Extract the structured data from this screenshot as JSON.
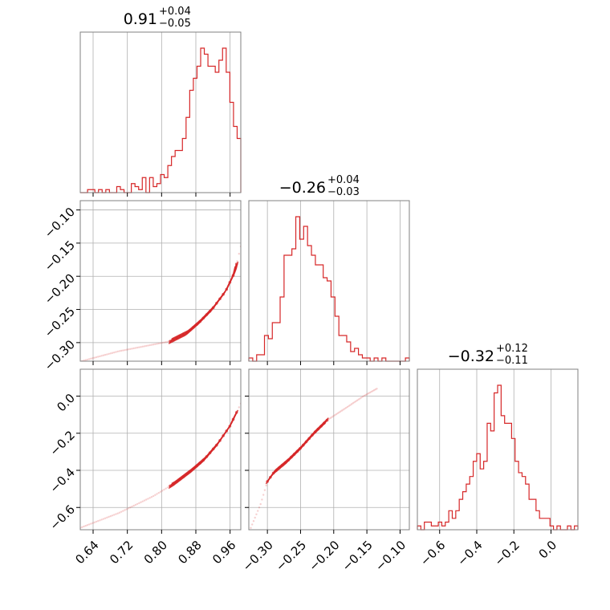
{
  "chart_data": {
    "type": "corner",
    "color": "#d62728",
    "grid": true,
    "titles": [
      {
        "value": "0.91",
        "plus": "+0.04",
        "minus": "−0.05"
      },
      {
        "value": "−0.26",
        "plus": "+0.04",
        "minus": "−0.03"
      },
      {
        "value": "−0.32",
        "plus": "+0.12",
        "minus": "−0.11"
      }
    ],
    "params": [
      {
        "range": [
          0.61,
          0.985
        ],
        "ticks": [
          0.64,
          0.72,
          0.8,
          0.88,
          0.96
        ],
        "tick_labels": [
          "0.64",
          "0.72",
          "0.80",
          "0.88",
          "0.96"
        ]
      },
      {
        "range": [
          -0.328,
          -0.086
        ],
        "ticks": [
          -0.3,
          -0.25,
          -0.2,
          -0.15,
          -0.1
        ],
        "tick_labels": [
          "−0.30",
          "−0.25",
          "−0.20",
          "−0.15",
          "−0.10"
        ]
      },
      {
        "range": [
          -0.72,
          0.145
        ],
        "ticks": [
          -0.6,
          -0.4,
          -0.2,
          0.0
        ],
        "tick_labels": [
          "−0.6",
          "−0.4",
          "−0.2",
          "0.0"
        ]
      }
    ],
    "y_tick_labels": {
      "1": [
        "−0.30",
        "−0.25",
        "−0.20",
        "−0.15",
        "−0.10"
      ],
      "2": [
        "−0.6",
        "−0.4",
        "−0.2",
        "0.0"
      ]
    },
    "hist": [
      [
        0,
        0,
        1,
        1,
        0,
        1,
        0,
        1,
        0,
        0,
        2,
        1,
        0,
        0,
        3,
        2,
        1,
        5,
        0,
        5,
        2,
        3,
        6,
        5,
        9,
        12,
        14,
        14,
        18,
        25,
        34,
        38,
        42,
        48,
        46,
        42,
        42,
        40,
        44,
        48,
        40,
        30,
        22,
        18
      ],
      [
        1,
        0,
        2,
        2,
        8,
        7,
        12,
        12,
        20,
        33,
        33,
        35,
        45,
        38,
        42,
        36,
        33,
        30,
        30,
        26,
        25,
        20,
        14,
        8,
        8,
        6,
        3,
        4,
        2,
        1,
        1,
        0,
        1,
        0,
        1,
        0,
        0,
        0,
        0,
        0,
        1
      ],
      [
        1,
        0,
        2,
        2,
        1,
        1,
        2,
        1,
        2,
        5,
        3,
        5,
        8,
        10,
        12,
        14,
        18,
        20,
        16,
        18,
        28,
        26,
        36,
        38,
        30,
        28,
        28,
        24,
        18,
        15,
        14,
        12,
        8,
        8,
        5,
        3,
        3,
        3,
        1,
        0,
        1,
        0,
        0,
        1,
        0,
        1
      ]
    ],
    "scatter": [
      {
        "row": 1,
        "col": 0,
        "curve": [
          [
            0.61,
            -0.3285
          ],
          [
            0.7,
            -0.313
          ],
          [
            0.78,
            -0.303
          ],
          [
            0.82,
            -0.298
          ],
          [
            0.86,
            -0.285
          ],
          [
            0.89,
            -0.268
          ],
          [
            0.92,
            -0.248
          ],
          [
            0.95,
            -0.222
          ],
          [
            0.97,
            -0.195
          ],
          [
            0.985,
            -0.155
          ]
        ],
        "core": [
          0.82,
          0.975
        ]
      },
      {
        "row": 2,
        "col": 0,
        "curve": [
          [
            0.61,
            -0.71
          ],
          [
            0.7,
            -0.63
          ],
          [
            0.78,
            -0.54
          ],
          [
            0.83,
            -0.47
          ],
          [
            0.87,
            -0.4
          ],
          [
            0.9,
            -0.34
          ],
          [
            0.93,
            -0.26
          ],
          [
            0.96,
            -0.16
          ],
          [
            0.985,
            -0.04
          ]
        ],
        "core": [
          0.82,
          0.975
        ]
      },
      {
        "row": 2,
        "col": 1,
        "curve": [
          [
            -0.325,
            -0.71
          ],
          [
            -0.31,
            -0.58
          ],
          [
            -0.3,
            -0.46
          ],
          [
            -0.29,
            -0.41
          ],
          [
            -0.27,
            -0.35
          ],
          [
            -0.25,
            -0.28
          ],
          [
            -0.23,
            -0.2
          ],
          [
            -0.21,
            -0.13
          ],
          [
            -0.18,
            -0.06
          ],
          [
            -0.155,
            0.0
          ],
          [
            -0.135,
            0.04
          ]
        ],
        "core": [
          -0.3,
          -0.21
        ]
      }
    ]
  }
}
